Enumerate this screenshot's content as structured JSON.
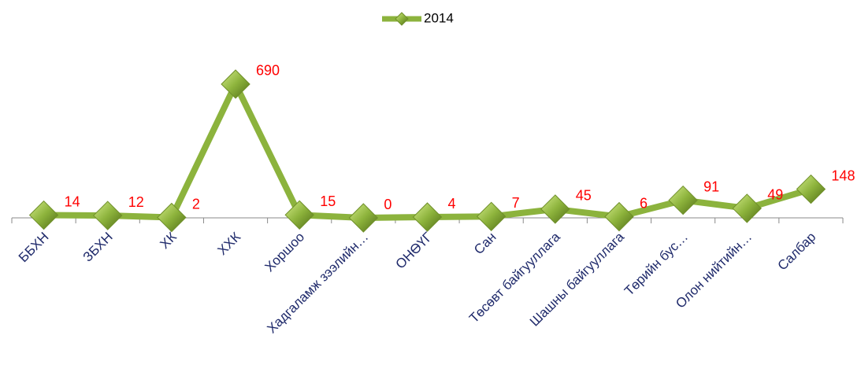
{
  "chart_data": {
    "type": "line",
    "categories": [
      "ББХН",
      "ЗБХН",
      "ХК",
      "ХХК",
      "Хоршоо",
      "Хадгаламж зээлийн…",
      "ОНӨҮГ",
      "Сан",
      "Төсөвт байгууллага",
      "Шашны байгууллага",
      "Төрийн бус…",
      "Олон нийтийн…",
      "Салбар"
    ],
    "series": [
      {
        "name": "2014",
        "color": "#8cb33d",
        "values": [
          14,
          12,
          2,
          690,
          15,
          0,
          4,
          7,
          45,
          6,
          91,
          49,
          148
        ]
      }
    ],
    "ylim": [
      0,
      700
    ],
    "legend": "top"
  }
}
